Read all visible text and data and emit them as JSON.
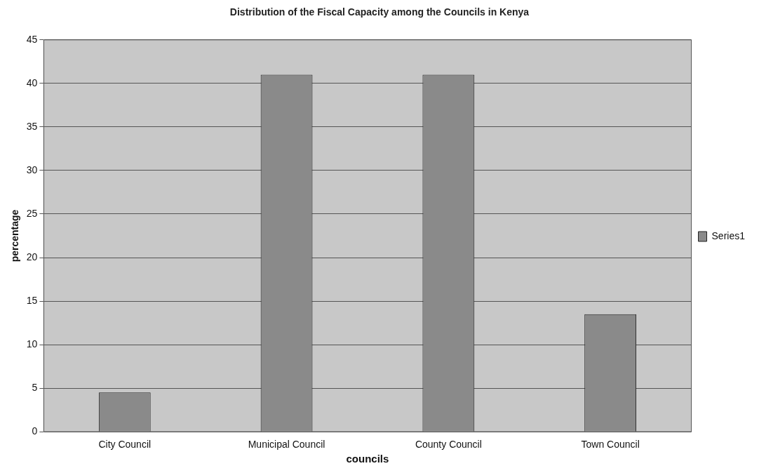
{
  "chart_data": {
    "type": "bar",
    "title": "Distribution of the Fiscal Capacity among the Councils in Kenya",
    "xlabel": "councils",
    "ylabel": "percentage",
    "categories": [
      "City Council",
      "Municipal Council",
      "County Council",
      "Town Council"
    ],
    "series": [
      {
        "name": "Series1",
        "color": "#8a8a8a",
        "values": [
          4.5,
          41,
          41,
          13.5
        ]
      }
    ],
    "ylim": [
      0,
      45
    ],
    "yticks": [
      0,
      5,
      10,
      15,
      20,
      25,
      30,
      35,
      40,
      45
    ],
    "grid": "y",
    "legend": "right"
  }
}
